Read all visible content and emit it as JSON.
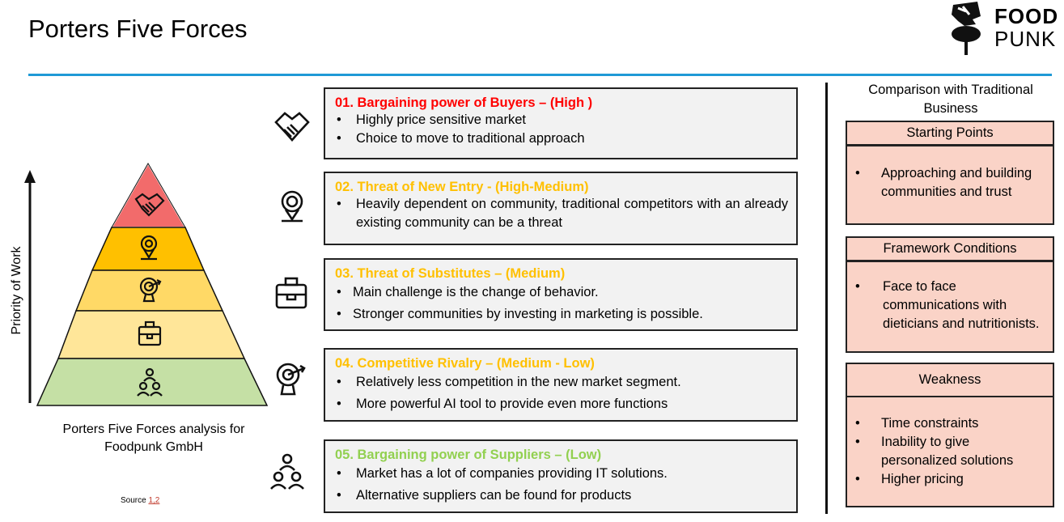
{
  "header": {
    "title": "Porters Five Forces",
    "logo_line1": "FOOD",
    "logo_line2": "PUNK"
  },
  "pyramid": {
    "axis_label": "Priority of Work",
    "caption": "Porters Five Forces analysis for Foodpunk GmbH",
    "source_prefix": "Source ",
    "source_refs": "1,2",
    "levels": [
      {
        "icon": "handshake-icon",
        "color": "#f26b6b"
      },
      {
        "icon": "location-pin-icon",
        "color": "#ffc000"
      },
      {
        "icon": "target-icon",
        "color": "#ffd966"
      },
      {
        "icon": "briefcase-icon",
        "color": "#ffe699"
      },
      {
        "icon": "team-icon",
        "color": "#c5e0a5"
      }
    ]
  },
  "forces": [
    {
      "title": "01. Bargaining power of Buyers – (High )",
      "color": "#ff0000",
      "icon": "handshake-icon",
      "points": [
        "Highly price sensitive market",
        "Choice to move to traditional approach"
      ]
    },
    {
      "title": "02. Threat of New Entry - (High-Medium)",
      "color": "#ffc000",
      "icon": "location-pin-icon",
      "points": [
        "Heavily dependent on community, traditional competitors with an already existing community can be a threat"
      ]
    },
    {
      "title": "03. Threat of Substitutes – (Medium)",
      "color": "#ffc000",
      "icon": "briefcase-icon",
      "points": [
        "Main challenge is the change of behavior.",
        "Stronger communities by investing in marketing is possible."
      ]
    },
    {
      "title": "04. Competitive Rivalry – (Medium - Low)",
      "color": "#ffc000",
      "icon": "target-icon",
      "points": [
        "Relatively less competition in the new market segment.",
        "More powerful AI tool to provide even more functions"
      ]
    },
    {
      "title": "05. Bargaining power of Suppliers – (Low)",
      "color": "#92d050",
      "icon": "team-icon",
      "points": [
        "Market has a lot of companies providing IT solutions.",
        "Alternative suppliers can be found for products"
      ]
    }
  ],
  "comparison": {
    "title": "Comparison with Traditional Business",
    "sections": [
      {
        "heading": "Starting Points",
        "items": [
          "Approaching and building communities and trust"
        ]
      },
      {
        "heading": "Framework  Conditions",
        "items": [
          "Face to face communications with dieticians and nutritionists."
        ]
      },
      {
        "heading": "Weakness",
        "items": [
          "Time constraints",
          "Inability to give",
          "personalized solutions",
          "Higher pricing"
        ]
      }
    ]
  },
  "colors": {
    "accent_rule": "#1f9ad6",
    "comparison_fill": "#fad3c7",
    "box_fill": "#f2f2f2"
  }
}
